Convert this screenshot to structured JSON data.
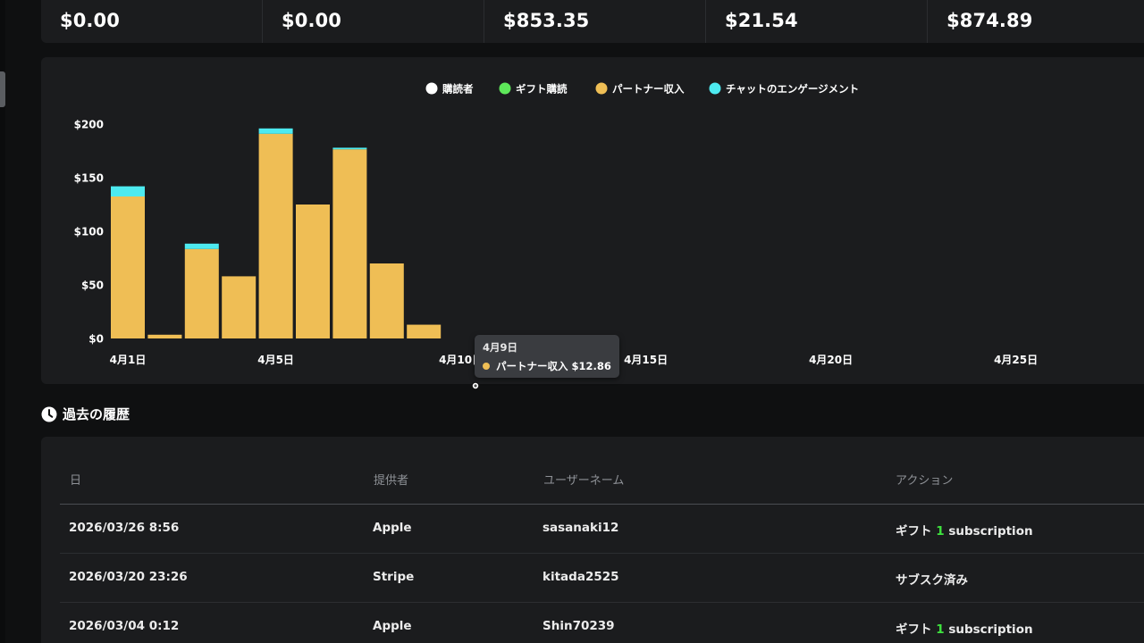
{
  "stats": [
    {
      "value": "$0.00"
    },
    {
      "value": "$0.00"
    },
    {
      "value": "$853.35"
    },
    {
      "value": "$21.54"
    },
    {
      "value": "$874.89"
    }
  ],
  "colors": {
    "subscribers": "#ffffff",
    "gift_subs": "#5ee85a",
    "partner_income": "#efbe55",
    "chat_engagement": "#4deaf0"
  },
  "chart_data": {
    "type": "bar",
    "stacked": true,
    "legend_position": "top",
    "legend": [
      "購読者",
      "ギフト購読",
      "パートナー収入",
      "チャットのエンゲージメント"
    ],
    "x": [
      "4月1日",
      "4月2日",
      "4月3日",
      "4月4日",
      "4月5日",
      "4月6日",
      "4月7日",
      "4月8日",
      "4月9日"
    ],
    "x_tick_labels": [
      "4月1日",
      "4月5日",
      "4月10日",
      "4月15日",
      "4月20日",
      "4月25日"
    ],
    "y_tick_labels": [
      "$0",
      "$50",
      "$100",
      "$150",
      "$200"
    ],
    "ylim": [
      0,
      200
    ],
    "series": [
      {
        "name": "購読者",
        "values": [
          0,
          0,
          0,
          0,
          0,
          0,
          0,
          0,
          0
        ]
      },
      {
        "name": "ギフト購読",
        "values": [
          0,
          0,
          0,
          0,
          0,
          0,
          0,
          0,
          0
        ]
      },
      {
        "name": "パートナー収入",
        "values": [
          132.5,
          3.5,
          83.5,
          58.0,
          191.0,
          125.0,
          176.5,
          70.0,
          12.86
        ]
      },
      {
        "name": "チャットのエンゲージメント",
        "values": [
          9.5,
          0,
          5.0,
          0,
          5.0,
          0,
          1.5,
          0,
          0
        ]
      }
    ]
  },
  "tooltip": {
    "title": "4月9日",
    "label": "パートナー収入",
    "value": "$12.86",
    "line": "パートナー収入  $12.86"
  },
  "history": {
    "title": "過去の履歴",
    "columns": [
      "日",
      "提供者",
      "ユーザーネーム",
      "アクション"
    ],
    "rows": [
      {
        "date": "2026/03/26 8:56",
        "provider": "Apple",
        "username": "sasanaki12",
        "action_prefix": "ギフト",
        "action_count": "1",
        "action_suffix": "subscription",
        "action": ""
      },
      {
        "date": "2026/03/20 23:26",
        "provider": "Stripe",
        "username": "kitada2525",
        "action_prefix": "",
        "action_count": "",
        "action_suffix": "",
        "action": "サブスク済み"
      },
      {
        "date": "2026/03/04 0:12",
        "provider": "Apple",
        "username": "Shin70239",
        "action_prefix": "ギフト",
        "action_count": "1",
        "action_suffix": "subscription",
        "action": ""
      }
    ]
  }
}
